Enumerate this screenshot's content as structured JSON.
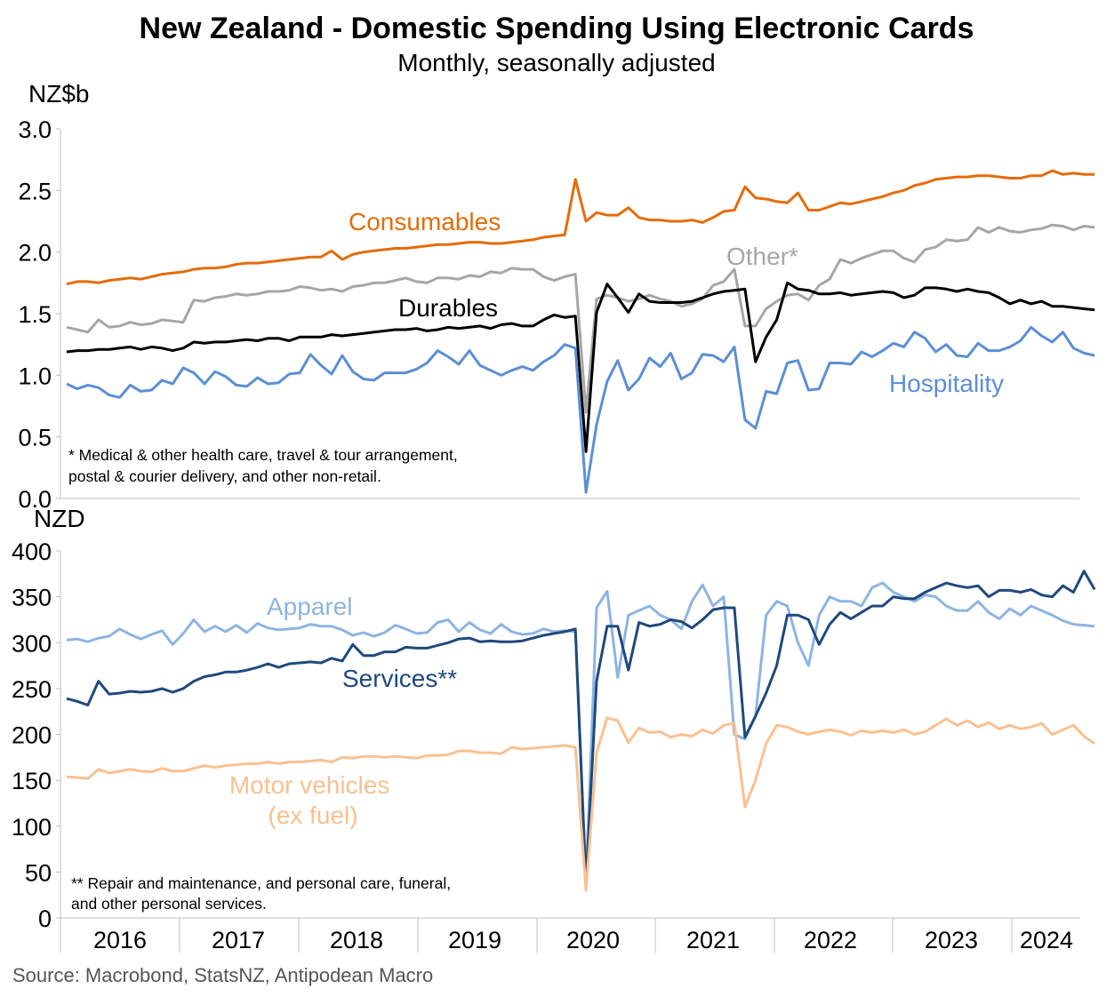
{
  "title": "New Zealand - Domestic Spending Using Electronic Cards",
  "subtitle": "Monthly, seasonally adjusted",
  "source": "Source: Macrobond, StatsNZ, Antipodean Macro",
  "chart_data": [
    {
      "type": "line",
      "unit_label": "NZ$b",
      "ylim": [
        0,
        3.0
      ],
      "yticks": [
        "0.0",
        "0.5",
        "1.0",
        "1.5",
        "2.0",
        "2.5",
        "3.0"
      ],
      "start": "2015-07",
      "x_tick_labels": [
        "2016",
        "2017",
        "2018",
        "2019",
        "2020",
        "2021",
        "2022",
        "2023",
        "2024"
      ],
      "grid": false,
      "note_lines": [
        "* Medical & other health care, travel & tour arrangement,",
        "postal & courier delivery, and other non-retail."
      ],
      "series": [
        {
          "name": "Consumables",
          "color": "#E46C0A",
          "values": [
            1.74,
            1.76,
            1.76,
            1.75,
            1.77,
            1.78,
            1.79,
            1.78,
            1.8,
            1.82,
            1.83,
            1.84,
            1.86,
            1.87,
            1.87,
            1.88,
            1.9,
            1.91,
            1.91,
            1.92,
            1.93,
            1.94,
            1.95,
            1.96,
            1.96,
            2.01,
            1.94,
            1.98,
            2.0,
            2.01,
            2.02,
            2.03,
            2.03,
            2.04,
            2.05,
            2.06,
            2.06,
            2.07,
            2.08,
            2.08,
            2.07,
            2.07,
            2.08,
            2.09,
            2.1,
            2.12,
            2.13,
            2.14,
            2.59,
            2.25,
            2.32,
            2.3,
            2.3,
            2.36,
            2.28,
            2.26,
            2.26,
            2.25,
            2.25,
            2.26,
            2.24,
            2.28,
            2.33,
            2.34,
            2.53,
            2.44,
            2.43,
            2.41,
            2.4,
            2.48,
            2.34,
            2.34,
            2.37,
            2.4,
            2.39,
            2.41,
            2.43,
            2.45,
            2.48,
            2.5,
            2.54,
            2.56,
            2.59,
            2.6,
            2.61,
            2.61,
            2.62,
            2.62,
            2.61,
            2.6,
            2.6,
            2.62,
            2.62,
            2.66,
            2.63,
            2.64,
            2.63,
            2.63
          ]
        },
        {
          "name": "Other*",
          "color": "#A6A6A6",
          "values": [
            1.39,
            1.37,
            1.35,
            1.45,
            1.39,
            1.4,
            1.43,
            1.41,
            1.42,
            1.45,
            1.44,
            1.43,
            1.61,
            1.6,
            1.63,
            1.64,
            1.66,
            1.65,
            1.66,
            1.68,
            1.68,
            1.69,
            1.72,
            1.71,
            1.69,
            1.7,
            1.68,
            1.72,
            1.73,
            1.75,
            1.75,
            1.77,
            1.79,
            1.76,
            1.75,
            1.79,
            1.79,
            1.78,
            1.81,
            1.8,
            1.84,
            1.83,
            1.87,
            1.86,
            1.86,
            1.8,
            1.77,
            1.8,
            1.82,
            0.7,
            1.62,
            1.65,
            1.63,
            1.6,
            1.62,
            1.65,
            1.62,
            1.6,
            1.56,
            1.58,
            1.62,
            1.73,
            1.76,
            1.86,
            1.4,
            1.4,
            1.54,
            1.6,
            1.65,
            1.66,
            1.61,
            1.73,
            1.78,
            1.94,
            1.91,
            1.95,
            1.98,
            2.01,
            2.01,
            1.95,
            1.92,
            2.02,
            2.04,
            2.1,
            2.09,
            2.1,
            2.2,
            2.16,
            2.2,
            2.17,
            2.16,
            2.18,
            2.19,
            2.22,
            2.21,
            2.18,
            2.21,
            2.2
          ]
        },
        {
          "name": "Durables",
          "color": "#000000",
          "values": [
            1.19,
            1.2,
            1.2,
            1.21,
            1.21,
            1.22,
            1.23,
            1.21,
            1.23,
            1.22,
            1.2,
            1.22,
            1.27,
            1.26,
            1.27,
            1.27,
            1.28,
            1.29,
            1.28,
            1.3,
            1.3,
            1.28,
            1.31,
            1.31,
            1.31,
            1.33,
            1.32,
            1.33,
            1.34,
            1.35,
            1.36,
            1.37,
            1.37,
            1.38,
            1.36,
            1.37,
            1.39,
            1.38,
            1.39,
            1.4,
            1.38,
            1.41,
            1.42,
            1.4,
            1.4,
            1.45,
            1.49,
            1.47,
            1.48,
            0.38,
            1.51,
            1.74,
            1.63,
            1.51,
            1.66,
            1.6,
            1.59,
            1.59,
            1.59,
            1.6,
            1.63,
            1.66,
            1.68,
            1.69,
            1.7,
            1.11,
            1.31,
            1.45,
            1.75,
            1.7,
            1.69,
            1.66,
            1.66,
            1.67,
            1.65,
            1.66,
            1.67,
            1.68,
            1.67,
            1.63,
            1.65,
            1.71,
            1.71,
            1.7,
            1.68,
            1.7,
            1.68,
            1.67,
            1.63,
            1.58,
            1.61,
            1.58,
            1.6,
            1.56,
            1.56,
            1.55,
            1.54,
            1.53
          ]
        },
        {
          "name": "Hospitality",
          "color": "#5B8FD4",
          "values": [
            0.93,
            0.89,
            0.92,
            0.9,
            0.84,
            0.82,
            0.92,
            0.87,
            0.88,
            0.96,
            0.93,
            1.06,
            1.02,
            0.93,
            1.03,
            0.99,
            0.92,
            0.91,
            0.98,
            0.93,
            0.94,
            1.01,
            1.02,
            1.17,
            1.08,
            1.01,
            1.16,
            1.03,
            0.97,
            0.96,
            1.02,
            1.02,
            1.02,
            1.05,
            1.1,
            1.2,
            1.15,
            1.09,
            1.2,
            1.08,
            1.04,
            1.0,
            1.04,
            1.07,
            1.04,
            1.11,
            1.16,
            1.25,
            1.22,
            0.05,
            0.6,
            0.95,
            1.12,
            0.88,
            0.97,
            1.14,
            1.07,
            1.18,
            0.97,
            1.02,
            1.17,
            1.16,
            1.11,
            1.23,
            0.64,
            0.57,
            0.87,
            0.85,
            1.1,
            1.12,
            0.88,
            0.89,
            1.1,
            1.1,
            1.09,
            1.19,
            1.15,
            1.2,
            1.26,
            1.23,
            1.35,
            1.3,
            1.19,
            1.25,
            1.16,
            1.15,
            1.26,
            1.2,
            1.2,
            1.23,
            1.28,
            1.39,
            1.32,
            1.27,
            1.35,
            1.22,
            1.18,
            1.16
          ]
        }
      ]
    },
    {
      "type": "line",
      "unit_label": "NZD",
      "ylim": [
        0,
        400
      ],
      "yticks": [
        "0",
        "50",
        "100",
        "150",
        "200",
        "250",
        "300",
        "350",
        "400"
      ],
      "start": "2015-07",
      "x_tick_labels": [
        "2016",
        "2017",
        "2018",
        "2019",
        "2020",
        "2021",
        "2022",
        "2023",
        "2024"
      ],
      "grid": false,
      "note_lines": [
        "** Repair and maintenance, and personal care, funeral,",
        "and other personal services."
      ],
      "series": [
        {
          "name": "Apparel",
          "color": "#8DB4E2",
          "values": [
            303,
            304,
            301,
            305,
            307,
            315,
            309,
            304,
            309,
            313,
            298,
            310,
            325,
            312,
            318,
            312,
            319,
            311,
            321,
            316,
            314,
            315,
            316,
            320,
            318,
            318,
            314,
            308,
            311,
            307,
            311,
            319,
            315,
            310,
            311,
            322,
            325,
            312,
            322,
            314,
            310,
            320,
            312,
            309,
            310,
            315,
            312,
            313,
            312,
            40,
            338,
            356,
            262,
            330,
            335,
            340,
            330,
            325,
            315,
            345,
            363,
            340,
            350,
            200,
            195,
            220,
            330,
            345,
            340,
            300,
            275,
            330,
            350,
            345,
            345,
            340,
            360,
            365,
            355,
            350,
            345,
            352,
            350,
            340,
            335,
            335,
            345,
            333,
            326,
            337,
            330,
            340,
            335,
            330,
            324,
            320,
            319,
            318
          ]
        },
        {
          "name": "Services**",
          "color": "#1F497D",
          "values": [
            239,
            236,
            232,
            258,
            244,
            245,
            247,
            246,
            247,
            250,
            246,
            250,
            258,
            263,
            265,
            268,
            268,
            270,
            273,
            277,
            273,
            277,
            278,
            279,
            278,
            283,
            280,
            298,
            286,
            286,
            290,
            290,
            295,
            294,
            294,
            297,
            300,
            304,
            305,
            301,
            302,
            301,
            301,
            302,
            305,
            308,
            310,
            312,
            315,
            37,
            258,
            318,
            318,
            270,
            322,
            318,
            320,
            325,
            323,
            316,
            325,
            336,
            338,
            338,
            197,
            220,
            245,
            275,
            330,
            330,
            325,
            298,
            320,
            333,
            326,
            333,
            340,
            340,
            350,
            348,
            348,
            355,
            360,
            365,
            362,
            360,
            362,
            350,
            357,
            357,
            355,
            358,
            352,
            350,
            362,
            355,
            378,
            358
          ]
        },
        {
          "name": "Motor vehicles (ex fuel)",
          "color": "#FAC090",
          "values": [
            154,
            153,
            152,
            162,
            158,
            160,
            162,
            160,
            159,
            163,
            160,
            160,
            163,
            166,
            164,
            166,
            167,
            168,
            168,
            170,
            168,
            170,
            170,
            171,
            172,
            170,
            175,
            174,
            176,
            176,
            175,
            176,
            175,
            174,
            177,
            177,
            178,
            182,
            182,
            180,
            180,
            179,
            186,
            184,
            185,
            186,
            187,
            188,
            186,
            30,
            180,
            218,
            215,
            191,
            207,
            202,
            203,
            197,
            200,
            198,
            205,
            201,
            210,
            212,
            121,
            150,
            190,
            210,
            208,
            203,
            200,
            203,
            205,
            203,
            199,
            204,
            202,
            204,
            202,
            205,
            200,
            203,
            210,
            217,
            210,
            215,
            208,
            213,
            206,
            210,
            206,
            208,
            212,
            200,
            205,
            210,
            198,
            190
          ]
        }
      ]
    }
  ]
}
